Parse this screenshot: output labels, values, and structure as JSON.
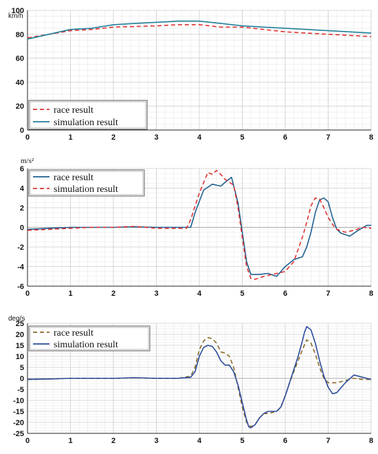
{
  "chart_data": [
    {
      "type": "line",
      "ylabel": "km/h",
      "xlim": [
        0,
        8
      ],
      "ylim": [
        0,
        100
      ],
      "xticks": [
        0,
        1,
        2,
        3,
        4,
        5,
        6,
        7,
        8
      ],
      "yticks": [
        0,
        20,
        40,
        60,
        80,
        100
      ],
      "grid": true,
      "legend": "bottom-left",
      "series": [
        {
          "name": "race result",
          "color": "#e03030",
          "dash": "dashed",
          "x": [
            0,
            0.5,
            1,
            1.5,
            2,
            2.5,
            3,
            3.5,
            4,
            4.5,
            5,
            5.5,
            6,
            6.5,
            7,
            7.5,
            8
          ],
          "y": [
            77,
            80,
            83,
            84,
            86,
            86.5,
            87,
            88,
            88,
            86,
            86,
            84,
            82,
            81,
            80,
            79,
            78
          ]
        },
        {
          "name": "simulation result",
          "color": "#1f7f9a",
          "dash": "solid",
          "x": [
            0,
            0.5,
            1,
            1.5,
            2,
            2.5,
            3,
            3.5,
            4,
            4.5,
            5,
            5.5,
            6,
            6.5,
            7,
            7.5,
            8
          ],
          "y": [
            76,
            80,
            84,
            85,
            88,
            89,
            90,
            91,
            91,
            89,
            87,
            86,
            85,
            84,
            83,
            82,
            81
          ]
        }
      ]
    },
    {
      "type": "line",
      "ylabel": "m/s²",
      "xlim": [
        0,
        8
      ],
      "ylim": [
        -6,
        6
      ],
      "xticks": [
        0,
        1,
        2,
        3,
        4,
        5,
        6,
        7,
        8
      ],
      "yticks": [
        -6,
        -4,
        -2,
        0,
        2,
        4,
        6
      ],
      "grid": true,
      "legend": "top-left",
      "series": [
        {
          "name": "race result",
          "color": "#1f5f8f",
          "dash": "solid",
          "x": [
            0,
            0.5,
            1,
            1.5,
            2,
            2.5,
            3,
            3.5,
            3.8,
            3.9,
            4.1,
            4.3,
            4.5,
            4.6,
            4.75,
            4.9,
            5.0,
            5.1,
            5.2,
            5.4,
            5.6,
            5.8,
            6.0,
            6.2,
            6.4,
            6.5,
            6.6,
            6.7,
            6.8,
            6.9,
            7.0,
            7.1,
            7.2,
            7.3,
            7.5,
            7.7,
            7.9,
            8.0
          ],
          "y": [
            -0.2,
            -0.1,
            0,
            0,
            0,
            0.05,
            0,
            0,
            0,
            1.5,
            3.8,
            4.4,
            4.2,
            4.6,
            5.1,
            2.5,
            -0.5,
            -3.5,
            -4.8,
            -4.8,
            -4.7,
            -5.0,
            -4.0,
            -3.3,
            -3.0,
            -2.0,
            -0.5,
            1.5,
            2.8,
            3.0,
            2.6,
            1.0,
            -0.2,
            -0.6,
            -0.9,
            -0.3,
            0.2,
            0.2
          ]
        },
        {
          "name": "simulation result",
          "color": "#e03030",
          "dash": "dashed",
          "x": [
            0,
            0.5,
            1,
            1.5,
            2,
            2.5,
            3,
            3.5,
            3.7,
            3.8,
            4.0,
            4.2,
            4.3,
            4.4,
            4.5,
            4.6,
            4.7,
            4.8,
            4.9,
            5.0,
            5.1,
            5.2,
            5.3,
            5.5,
            5.7,
            5.9,
            6.0,
            6.2,
            6.4,
            6.5,
            6.6,
            6.7,
            6.8,
            6.9,
            7.0,
            7.1,
            7.2,
            7.4,
            7.6,
            7.8,
            8.0
          ],
          "y": [
            -0.3,
            -0.2,
            -0.1,
            0,
            0,
            0.1,
            -0.1,
            -0.1,
            -0.1,
            0.8,
            3.5,
            5.6,
            5.4,
            5.8,
            5.4,
            4.9,
            4.6,
            4.3,
            2.0,
            -1.0,
            -4.0,
            -5.2,
            -5.3,
            -5.0,
            -4.8,
            -4.6,
            -4.5,
            -3.5,
            -1.0,
            0.5,
            2.2,
            3.0,
            2.9,
            2.0,
            1.0,
            0.3,
            -0.2,
            -0.5,
            -0.3,
            0.0,
            -0.1
          ]
        }
      ]
    },
    {
      "type": "line",
      "ylabel": "deg/s",
      "xlim": [
        0,
        8
      ],
      "ylim": [
        -25,
        25
      ],
      "xticks": [
        0,
        1,
        2,
        3,
        4,
        5,
        6,
        7,
        8
      ],
      "yticks": [
        -25,
        -20,
        -15,
        -10,
        -5,
        0,
        5,
        10,
        15,
        20,
        25
      ],
      "grid": true,
      "legend": "top-left",
      "series": [
        {
          "name": "race result",
          "color": "#8a6a2a",
          "dash": "dashed",
          "x": [
            0,
            0.5,
            1,
            1.5,
            2,
            2.5,
            3,
            3.5,
            3.8,
            3.9,
            4.0,
            4.1,
            4.2,
            4.3,
            4.4,
            4.5,
            4.6,
            4.7,
            4.8,
            4.9,
            5.0,
            5.1,
            5.2,
            5.3,
            5.4,
            5.5,
            5.6,
            5.8,
            5.9,
            6.0,
            6.1,
            6.2,
            6.3,
            6.4,
            6.5,
            6.6,
            6.7,
            6.8,
            6.9,
            7.0,
            7.2,
            7.4,
            7.6,
            7.8,
            8.0
          ],
          "y": [
            -0.5,
            -0.3,
            0,
            0,
            0,
            0.2,
            0,
            0,
            1,
            5,
            13,
            17,
            18.5,
            18,
            16,
            12,
            11.5,
            10,
            5,
            -4,
            -13,
            -20,
            -22,
            -21,
            -18,
            -16,
            -16,
            -15,
            -13,
            -8,
            -2,
            3,
            8,
            13,
            17.5,
            16,
            11,
            5,
            0,
            -2,
            -2,
            -1,
            0,
            -0.5,
            -0.5
          ]
        },
        {
          "name": "simulation result",
          "color": "#2a4a9a",
          "dash": "solid",
          "x": [
            0,
            0.5,
            1,
            1.5,
            2,
            2.5,
            3,
            3.5,
            3.8,
            3.9,
            4.0,
            4.1,
            4.2,
            4.3,
            4.4,
            4.5,
            4.6,
            4.7,
            4.8,
            4.9,
            5.0,
            5.1,
            5.15,
            5.2,
            5.3,
            5.4,
            5.5,
            5.6,
            5.8,
            5.9,
            6.0,
            6.1,
            6.2,
            6.3,
            6.4,
            6.45,
            6.5,
            6.6,
            6.7,
            6.8,
            6.9,
            7.0,
            7.1,
            7.2,
            7.4,
            7.6,
            7.8,
            8.0
          ],
          "y": [
            -0.5,
            -0.3,
            0,
            0,
            0,
            0.3,
            0,
            0,
            0.5,
            3,
            10,
            14,
            15,
            14.5,
            12,
            8,
            6,
            6,
            3,
            -3,
            -11,
            -19,
            -22,
            -22.5,
            -21,
            -18,
            -16,
            -15,
            -15,
            -13,
            -8,
            -2,
            4,
            10,
            17,
            21,
            23.5,
            22,
            16,
            8,
            1,
            -4,
            -7,
            -6.5,
            -2,
            1.5,
            0.5,
            -0.5
          ]
        }
      ]
    }
  ]
}
